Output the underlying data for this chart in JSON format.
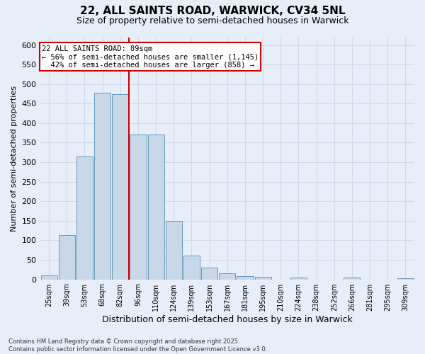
{
  "title_line1": "22, ALL SAINTS ROAD, WARWICK, CV34 5NL",
  "title_line2": "Size of property relative to semi-detached houses in Warwick",
  "xlabel": "Distribution of semi-detached houses by size in Warwick",
  "ylabel": "Number of semi-detached properties",
  "categories": [
    "25sqm",
    "39sqm",
    "53sqm",
    "68sqm",
    "82sqm",
    "96sqm",
    "110sqm",
    "124sqm",
    "139sqm",
    "153sqm",
    "167sqm",
    "181sqm",
    "195sqm",
    "210sqm",
    "224sqm",
    "238sqm",
    "252sqm",
    "266sqm",
    "281sqm",
    "295sqm",
    "309sqm"
  ],
  "values": [
    10,
    113,
    315,
    478,
    475,
    370,
    370,
    150,
    60,
    30,
    15,
    8,
    7,
    0,
    5,
    0,
    0,
    5,
    0,
    0,
    3
  ],
  "bar_color": "#c8d8e8",
  "bar_edge_color": "#6699bb",
  "grid_color": "#d0d8e8",
  "bg_color": "#e8eef8",
  "vline_color": "#cc0000",
  "vline_pos": 4.5,
  "annotation_line1": "22 ALL SAINTS ROAD: 89sqm",
  "annotation_line2": "← 56% of semi-detached houses are smaller (1,145)",
  "annotation_line3": "  42% of semi-detached houses are larger (858) →",
  "annotation_box_color": "#ffffff",
  "annotation_box_edge": "#cc0000",
  "ylim": [
    0,
    620
  ],
  "yticks": [
    0,
    50,
    100,
    150,
    200,
    250,
    300,
    350,
    400,
    450,
    500,
    550,
    600
  ],
  "footnote": "Contains HM Land Registry data © Crown copyright and database right 2025.\nContains public sector information licensed under the Open Government Licence v3.0.",
  "figsize": [
    6.0,
    5.0
  ],
  "dpi": 100
}
